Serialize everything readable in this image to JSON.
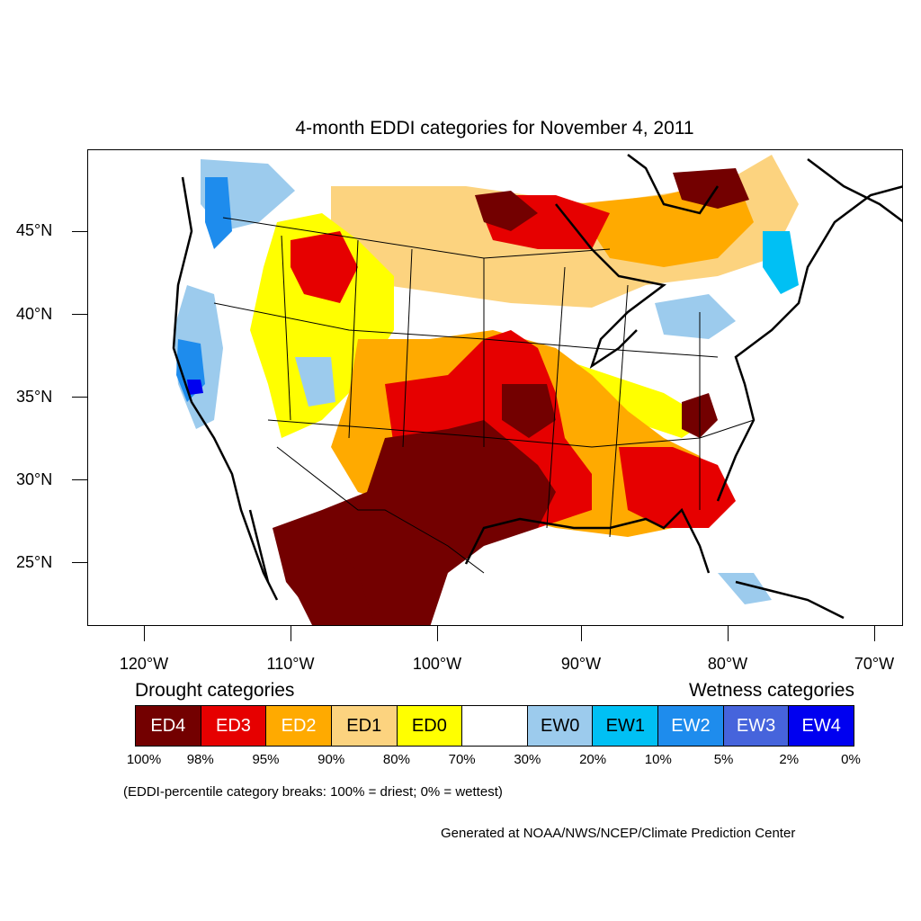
{
  "title": "4-month EDDI categories for November 4, 2011",
  "lat_labels": [
    "45°N",
    "40°N",
    "35°N",
    "30°N",
    "25°N"
  ],
  "lon_labels": [
    "120°W",
    "110°W",
    "100°W",
    "90°W",
    "80°W",
    "70°W"
  ],
  "legend": {
    "drought_heading": "Drought categories",
    "wetness_heading": "Wetness categories",
    "categories": [
      {
        "label": "ED4",
        "color": "#730000",
        "text_color": "#ffffff"
      },
      {
        "label": "ED3",
        "color": "#e60000",
        "text_color": "#ffffff"
      },
      {
        "label": "ED2",
        "color": "#ffaa00",
        "text_color": "#ffffff"
      },
      {
        "label": "ED1",
        "color": "#fcd37f",
        "text_color": "#000000"
      },
      {
        "label": "ED0",
        "color": "#ffff00",
        "text_color": "#000000"
      },
      {
        "label": "",
        "color": "#ffffff",
        "text_color": "#000000"
      },
      {
        "label": "EW0",
        "color": "#9ccbed",
        "text_color": "#000000"
      },
      {
        "label": "EW1",
        "color": "#00c0f4",
        "text_color": "#000000"
      },
      {
        "label": "EW2",
        "color": "#1e8ced",
        "text_color": "#ffffff"
      },
      {
        "label": "EW3",
        "color": "#4664dc",
        "text_color": "#ffffff"
      },
      {
        "label": "EW4",
        "color": "#0000f0",
        "text_color": "#ffffff"
      }
    ],
    "percentiles": [
      "100%",
      "98%",
      "95%",
      "90%",
      "80%",
      "70%",
      "30%",
      "20%",
      "10%",
      "5%",
      "2%",
      "0%"
    ]
  },
  "note": "(EDDI-percentile category breaks: 100% = driest; 0% = wettest)",
  "credit": "Generated at NOAA/NWS/NCEP/Climate Prediction Center"
}
